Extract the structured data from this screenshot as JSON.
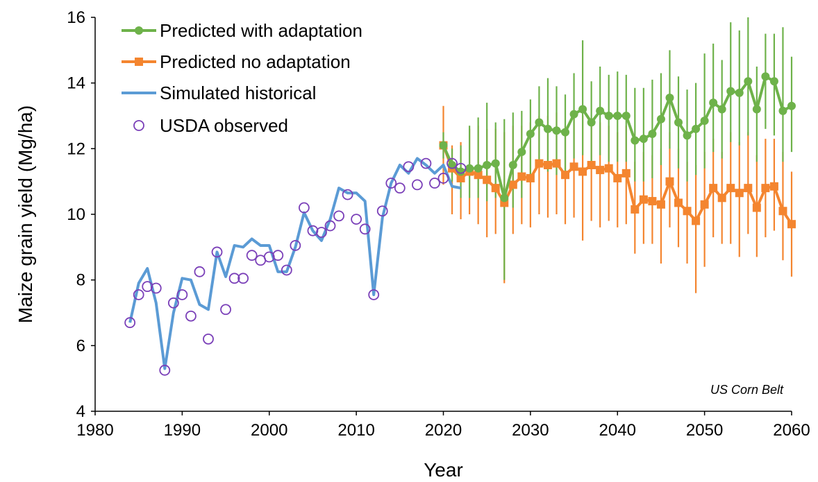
{
  "chart_data": {
    "type": "line",
    "title": "",
    "xlabel": "Year",
    "ylabel": "Maize grain yield (Mg/ha)",
    "xlim": [
      1980,
      2060
    ],
    "ylim": [
      4,
      16
    ],
    "xticks": [
      "1980",
      "1990",
      "2000",
      "2010",
      "2020",
      "2030",
      "2040",
      "2050",
      "2060"
    ],
    "yticks": [
      "4",
      "6",
      "8",
      "10",
      "12",
      "14",
      "16"
    ],
    "grid": false,
    "legend_position": "top-left",
    "annotation": "US Corn Belt",
    "colors": {
      "with_adaptation": "#6eb24a",
      "no_adaptation": "#f4852f",
      "historical": "#5b9bd5",
      "observed": "#7a3fb8"
    },
    "series": [
      {
        "name": "Predicted with adaptation",
        "marker": "circle",
        "x": [
          2020,
          2021,
          2022,
          2023,
          2024,
          2025,
          2026,
          2027,
          2028,
          2029,
          2030,
          2031,
          2032,
          2033,
          2034,
          2035,
          2036,
          2037,
          2038,
          2039,
          2040,
          2041,
          2042,
          2043,
          2044,
          2045,
          2046,
          2047,
          2048,
          2049,
          2050,
          2051,
          2052,
          2053,
          2054,
          2055,
          2056,
          2057,
          2058,
          2059,
          2060
        ],
        "y": [
          12.1,
          11.5,
          11.3,
          11.4,
          11.4,
          11.5,
          11.55,
          10.5,
          11.5,
          11.9,
          12.45,
          12.8,
          12.6,
          12.55,
          12.5,
          13.05,
          13.2,
          12.8,
          13.15,
          13.0,
          13.0,
          13.0,
          12.25,
          12.3,
          12.45,
          12.9,
          13.55,
          12.8,
          12.4,
          12.6,
          12.85,
          13.4,
          13.2,
          13.75,
          13.7,
          14.05,
          13.2,
          14.2,
          14.05,
          13.15,
          13.3
        ],
        "error_low": [
          11.7,
          11.0,
          10.5,
          10.5,
          10.5,
          10.4,
          10.5,
          8.0,
          10.2,
          10.5,
          11.1,
          11.5,
          11.3,
          11.2,
          11.1,
          11.7,
          11.8,
          11.5,
          11.8,
          11.6,
          11.6,
          11.6,
          11.0,
          11.0,
          11.1,
          11.5,
          12.0,
          11.4,
          11.0,
          11.2,
          11.4,
          11.9,
          11.7,
          12.2,
          12.1,
          12.4,
          11.6,
          12.6,
          12.4,
          11.6,
          11.9
        ],
        "error_high": [
          12.5,
          12.0,
          12.1,
          12.7,
          12.95,
          13.4,
          12.8,
          12.9,
          13.1,
          13.15,
          13.5,
          13.9,
          14.15,
          13.9,
          13.65,
          14.3,
          15.3,
          14.05,
          14.5,
          14.25,
          14.35,
          14.25,
          13.85,
          13.85,
          14.1,
          14.3,
          15.0,
          14.2,
          13.8,
          14.0,
          14.9,
          15.2,
          14.7,
          15.85,
          15.6,
          16.0,
          14.5,
          15.5,
          15.5,
          15.7,
          14.8
        ]
      },
      {
        "name": "Predicted no adaptation",
        "marker": "square",
        "x": [
          2020,
          2021,
          2022,
          2023,
          2024,
          2025,
          2026,
          2027,
          2028,
          2029,
          2030,
          2031,
          2032,
          2033,
          2034,
          2035,
          2036,
          2037,
          2038,
          2039,
          2040,
          2041,
          2042,
          2043,
          2044,
          2045,
          2046,
          2047,
          2048,
          2049,
          2050,
          2051,
          2052,
          2053,
          2054,
          2055,
          2056,
          2057,
          2058,
          2059,
          2060
        ],
        "y": [
          12.1,
          11.4,
          11.1,
          11.3,
          11.2,
          11.05,
          10.8,
          10.35,
          10.9,
          11.15,
          11.1,
          11.55,
          11.5,
          11.55,
          11.2,
          11.45,
          11.3,
          11.5,
          11.35,
          11.4,
          11.1,
          11.25,
          10.15,
          10.45,
          10.4,
          10.3,
          11.0,
          10.35,
          10.1,
          9.8,
          10.3,
          10.8,
          10.5,
          10.8,
          10.65,
          10.8,
          10.2,
          10.8,
          10.85,
          10.1,
          9.7
        ],
        "error_low": [
          10.9,
          10.0,
          9.85,
          10.0,
          9.7,
          9.3,
          9.4,
          7.9,
          9.4,
          9.7,
          9.6,
          10.0,
          9.9,
          10.0,
          9.7,
          9.9,
          9.2,
          9.8,
          9.6,
          9.8,
          9.6,
          9.7,
          8.8,
          9.1,
          9.1,
          8.5,
          9.6,
          9.0,
          8.5,
          7.6,
          8.4,
          9.3,
          9.1,
          9.1,
          8.7,
          9.4,
          8.7,
          9.3,
          9.5,
          8.6,
          8.1
        ],
        "error_high": [
          13.3,
          12.1,
          12.2,
          12.6,
          12.7,
          12.6,
          12.6,
          12.5,
          12.7,
          12.7,
          12.8,
          13.0,
          13.0,
          13.1,
          12.7,
          13.0,
          13.0,
          12.8,
          12.8,
          12.7,
          12.5,
          12.7,
          11.6,
          11.9,
          11.8,
          12.0,
          12.5,
          12.0,
          11.6,
          11.5,
          11.9,
          12.3,
          11.9,
          12.5,
          12.2,
          12.5,
          11.8,
          12.3,
          12.3,
          11.9,
          11.3
        ]
      },
      {
        "name": "Simulated historical",
        "marker": "none",
        "x": [
          1984,
          1985,
          1986,
          1987,
          1988,
          1989,
          1990,
          1991,
          1992,
          1993,
          1994,
          1995,
          1996,
          1997,
          1998,
          1999,
          2000,
          2001,
          2002,
          2003,
          2004,
          2005,
          2006,
          2007,
          2008,
          2009,
          2010,
          2011,
          2012,
          2013,
          2014,
          2015,
          2016,
          2017,
          2018,
          2019,
          2020,
          2021,
          2022
        ],
        "y": [
          6.7,
          7.9,
          8.35,
          7.3,
          5.3,
          7.0,
          8.05,
          8.0,
          7.25,
          7.1,
          8.85,
          8.1,
          9.05,
          9.0,
          9.25,
          9.05,
          9.05,
          8.25,
          8.25,
          9.0,
          10.05,
          9.5,
          9.2,
          9.85,
          10.8,
          10.65,
          10.65,
          10.4,
          7.55,
          9.9,
          10.95,
          11.5,
          11.25,
          11.7,
          11.5,
          11.25,
          11.5,
          10.85,
          10.8
        ]
      },
      {
        "name": "USDA observed",
        "marker": "open-circle",
        "x": [
          1984,
          1985,
          1986,
          1987,
          1988,
          1989,
          1990,
          1991,
          1992,
          1993,
          1994,
          1995,
          1996,
          1997,
          1998,
          1999,
          2000,
          2001,
          2002,
          2003,
          2004,
          2005,
          2006,
          2007,
          2008,
          2009,
          2010,
          2011,
          2012,
          2013,
          2014,
          2015,
          2016,
          2017,
          2018,
          2019,
          2020,
          2021,
          2022
        ],
        "y": [
          6.7,
          7.55,
          7.8,
          7.75,
          5.25,
          7.3,
          7.55,
          6.9,
          8.25,
          6.2,
          8.85,
          7.1,
          8.05,
          8.05,
          8.75,
          8.6,
          8.7,
          8.75,
          8.3,
          9.05,
          10.2,
          9.5,
          9.45,
          9.65,
          9.95,
          10.6,
          9.85,
          9.55,
          7.55,
          10.1,
          10.95,
          10.8,
          11.45,
          10.9,
          11.55,
          10.95,
          11.1,
          11.55,
          11.4
        ]
      }
    ]
  }
}
